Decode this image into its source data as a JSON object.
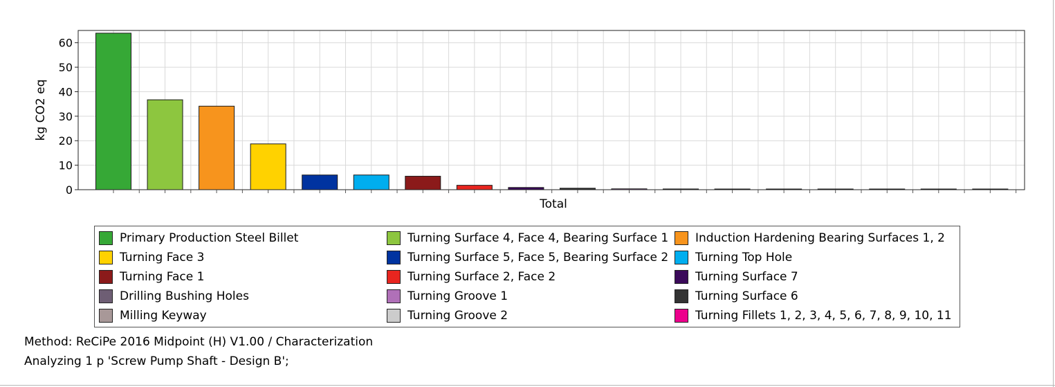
{
  "chart_data": {
    "type": "bar",
    "title": "",
    "xlabel": "Total",
    "ylabel": "kg CO2 eq",
    "ylim": [
      0,
      65
    ],
    "yticks": [
      0,
      10,
      20,
      30,
      40,
      50,
      60
    ],
    "grid": true,
    "legend_position": "bottom",
    "series": [
      {
        "name": "Primary Production Steel Billet",
        "value": 63.9,
        "color": "#36a836"
      },
      {
        "name": "Turning Surface 4, Face 4, Bearing Surface 1",
        "value": 36.7,
        "color": "#8dc63f"
      },
      {
        "name": "Induction Hardening Bearing Surfaces 1, 2",
        "value": 34.1,
        "color": "#f7941d"
      },
      {
        "name": "Turning Face 3",
        "value": 18.7,
        "color": "#ffd200"
      },
      {
        "name": "Turning Surface 5, Face 5, Bearing Surface 2",
        "value": 6.0,
        "color": "#0033a0"
      },
      {
        "name": "Turning Top Hole",
        "value": 6.0,
        "color": "#00aeef"
      },
      {
        "name": "Turning Face 1",
        "value": 5.5,
        "color": "#8b1a1a"
      },
      {
        "name": "Turning Surface 2, Face 2",
        "value": 1.8,
        "color": "#e8251f"
      },
      {
        "name": "Turning Surface 7",
        "value": 0.9,
        "color": "#3b0a5a"
      },
      {
        "name": "Turning Surface 6",
        "value": 0.6,
        "color": "#333333"
      },
      {
        "name": "Turning Groove 1",
        "value": 0.35,
        "color": "#b070b8"
      },
      {
        "name": "Drilling Bushing Holes",
        "value": 0.3,
        "color": "#6e5e74"
      },
      {
        "name": "Milling Keyway",
        "value": 0.25,
        "color": "#a89898"
      },
      {
        "name": "Turning Groove 2",
        "value": 0.15,
        "color": "#cccccc"
      },
      {
        "name": "Turning Fillets 1, 2, 3, 4, 5, 6, 7, 8, 9, 10, 11",
        "value": 0.15,
        "color": "#ec008c"
      },
      {
        "name": "",
        "value": 0.1,
        "color": "#00aeef"
      },
      {
        "name": "",
        "value": 0.1,
        "color": "#ec008c"
      },
      {
        "name": "",
        "value": 0.1,
        "color": "#1fb5a0"
      }
    ]
  },
  "legend": {
    "items": [
      {
        "label": "Primary Production Steel Billet",
        "color": "#36a836"
      },
      {
        "label": "Turning Surface 4, Face 4, Bearing Surface 1",
        "color": "#8dc63f"
      },
      {
        "label": "Induction Hardening Bearing Surfaces 1, 2",
        "color": "#f7941d"
      },
      {
        "label": "Turning Face 3",
        "color": "#ffd200"
      },
      {
        "label": "Turning Surface 5, Face 5, Bearing Surface 2",
        "color": "#0033a0"
      },
      {
        "label": "Turning Top Hole",
        "color": "#00aeef"
      },
      {
        "label": "Turning Face 1",
        "color": "#8b1a1a"
      },
      {
        "label": "Turning Surface 2, Face 2",
        "color": "#e8251f"
      },
      {
        "label": "Turning Surface 7",
        "color": "#3b0a5a"
      },
      {
        "label": "Drilling Bushing Holes",
        "color": "#6e5e74"
      },
      {
        "label": "Turning Groove 1",
        "color": "#b070b8"
      },
      {
        "label": "Turning Surface 6",
        "color": "#333333"
      },
      {
        "label": "Milling Keyway",
        "color": "#a89898"
      },
      {
        "label": "Turning Groove 2",
        "color": "#cccccc"
      },
      {
        "label": "Turning Fillets 1, 2, 3, 4, 5, 6, 7, 8, 9, 10, 11",
        "color": "#ec008c"
      }
    ]
  },
  "footer": {
    "method": "Method: ReCiPe 2016 Midpoint (H) V1.00 / Characterization",
    "analyzing": "Analyzing 1 p 'Screw Pump Shaft - Design B';"
  }
}
